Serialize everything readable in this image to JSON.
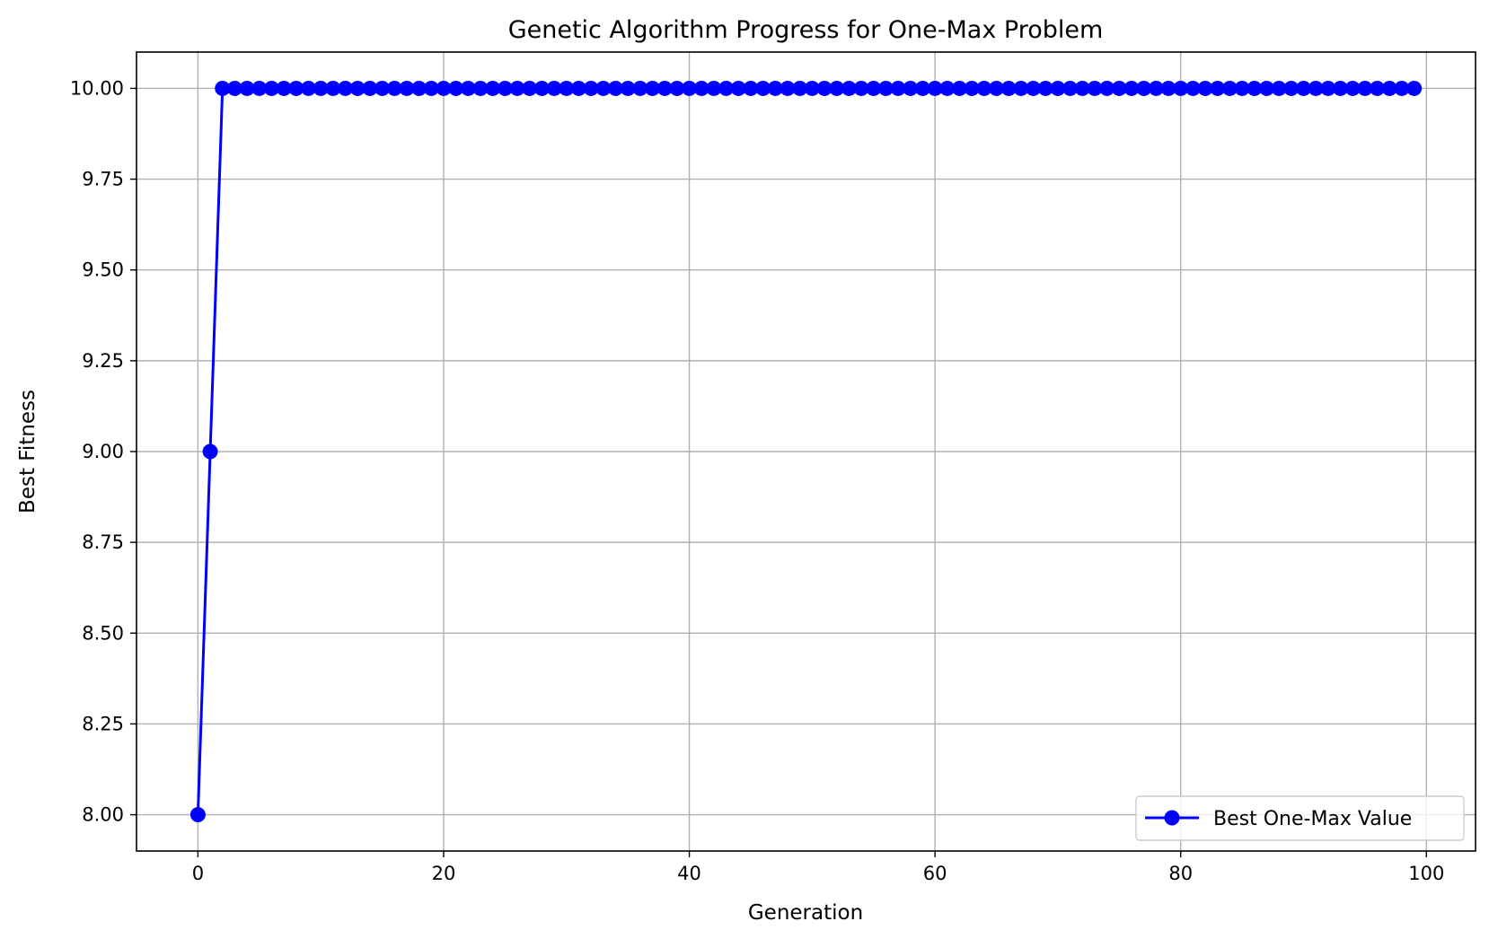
{
  "chart_data": {
    "type": "line",
    "title": "Genetic Algorithm Progress for One-Max Problem",
    "xlabel": "Generation",
    "ylabel": "Best Fitness",
    "xlim": [
      -5,
      104
    ],
    "ylim": [
      7.9,
      10.1
    ],
    "xticks": [
      0,
      20,
      40,
      60,
      80,
      100
    ],
    "yticks": [
      8.0,
      8.25,
      8.5,
      8.75,
      9.0,
      9.25,
      9.5,
      9.75,
      10.0
    ],
    "xtick_labels": [
      "0",
      "20",
      "40",
      "60",
      "80",
      "100"
    ],
    "ytick_labels": [
      "8.00",
      "8.25",
      "8.50",
      "8.75",
      "9.00",
      "9.25",
      "9.50",
      "9.75",
      "10.00"
    ],
    "grid": true,
    "legend_position": "bottom-right",
    "series": [
      {
        "name": "Best One-Max Value",
        "color": "#0000ff",
        "marker": "circle",
        "x": [
          0,
          1,
          2,
          3,
          4,
          5,
          6,
          7,
          8,
          9,
          10,
          11,
          12,
          13,
          14,
          15,
          16,
          17,
          18,
          19,
          20,
          21,
          22,
          23,
          24,
          25,
          26,
          27,
          28,
          29,
          30,
          31,
          32,
          33,
          34,
          35,
          36,
          37,
          38,
          39,
          40,
          41,
          42,
          43,
          44,
          45,
          46,
          47,
          48,
          49,
          50,
          51,
          52,
          53,
          54,
          55,
          56,
          57,
          58,
          59,
          60,
          61,
          62,
          63,
          64,
          65,
          66,
          67,
          68,
          69,
          70,
          71,
          72,
          73,
          74,
          75,
          76,
          77,
          78,
          79,
          80,
          81,
          82,
          83,
          84,
          85,
          86,
          87,
          88,
          89,
          90,
          91,
          92,
          93,
          94,
          95,
          96,
          97,
          98,
          99
        ],
        "y": [
          8,
          9,
          10,
          10,
          10,
          10,
          10,
          10,
          10,
          10,
          10,
          10,
          10,
          10,
          10,
          10,
          10,
          10,
          10,
          10,
          10,
          10,
          10,
          10,
          10,
          10,
          10,
          10,
          10,
          10,
          10,
          10,
          10,
          10,
          10,
          10,
          10,
          10,
          10,
          10,
          10,
          10,
          10,
          10,
          10,
          10,
          10,
          10,
          10,
          10,
          10,
          10,
          10,
          10,
          10,
          10,
          10,
          10,
          10,
          10,
          10,
          10,
          10,
          10,
          10,
          10,
          10,
          10,
          10,
          10,
          10,
          10,
          10,
          10,
          10,
          10,
          10,
          10,
          10,
          10,
          10,
          10,
          10,
          10,
          10,
          10,
          10,
          10,
          10,
          10,
          10,
          10,
          10,
          10,
          10,
          10,
          10,
          10,
          10,
          10
        ]
      }
    ]
  }
}
